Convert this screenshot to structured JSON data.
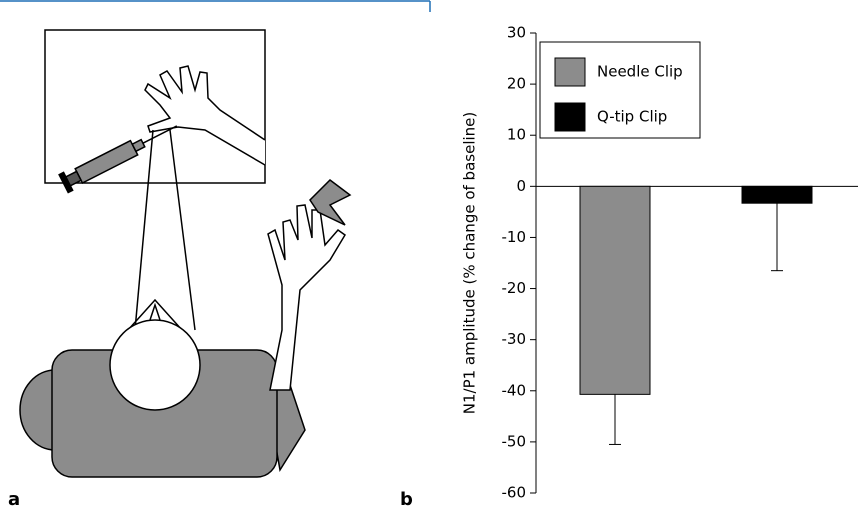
{
  "panel_labels": [
    "a",
    "b"
  ],
  "chart_data": {
    "type": "bar",
    "ylabel": "N1/P1 amplitude (% change of baseline)",
    "series": [
      {
        "name": "Needle Clip",
        "color": "#8c8c8c",
        "values": [
          -40.7
        ],
        "errors": [
          9.8
        ]
      },
      {
        "name": "Q-tip Clip",
        "color": "#000000",
        "values": [
          -3.3
        ],
        "errors": [
          13.2
        ]
      }
    ],
    "ylim": [
      -60,
      30
    ],
    "yticks": [
      -60,
      -50,
      -40,
      -30,
      -20,
      -10,
      0,
      10,
      20,
      30
    ]
  }
}
